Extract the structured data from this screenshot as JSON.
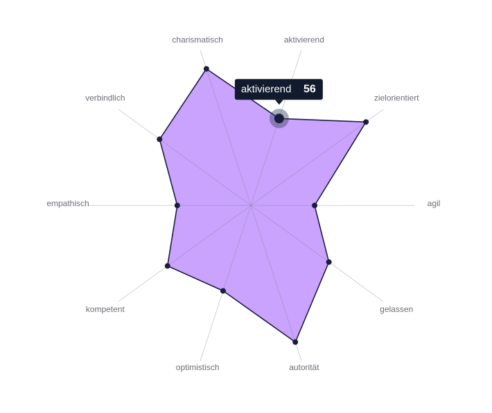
{
  "chart_data": {
    "type": "radar",
    "categories": [
      "aktivierend",
      "zielorientiert",
      "agil",
      "gelassen",
      "autorität",
      "optimistisch",
      "kompetent",
      "empathisch",
      "verbindlich",
      "charismatisch"
    ],
    "values": [
      56,
      87,
      39,
      59,
      88,
      55,
      63,
      45,
      69,
      88
    ],
    "rlim": [
      0,
      100
    ],
    "color": "#c9a3fd",
    "line_color": "#1b1d3f",
    "highlight": 0
  }
}
